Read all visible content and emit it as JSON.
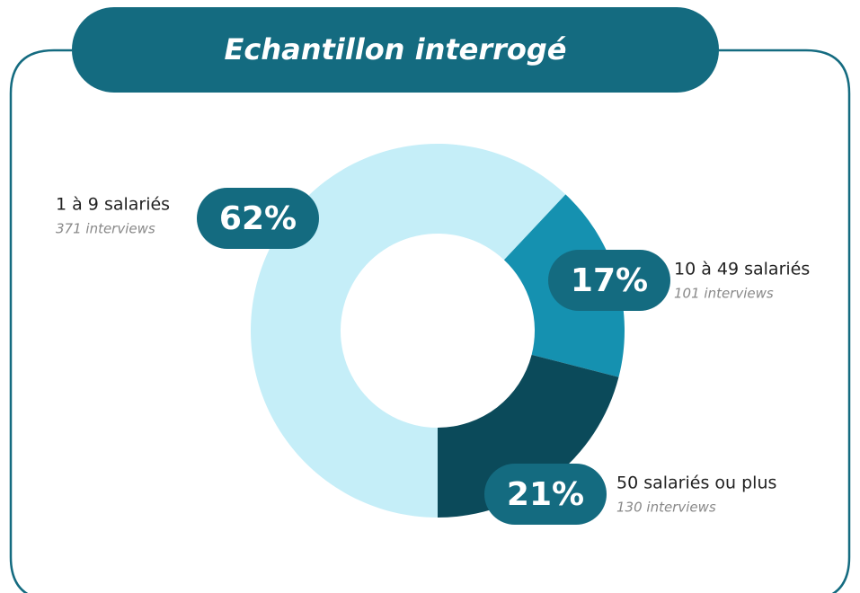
{
  "chart_data": {
    "type": "donut",
    "title": "Echantillon interrogé",
    "categories": [
      "1 à 9 salariés",
      "10 à 49 salariés",
      "50 salariés ou plus"
    ],
    "values": [
      62,
      17,
      21
    ],
    "value_labels": [
      "62%",
      "17%",
      "21%"
    ],
    "sublabels": [
      "371 interviews",
      "101 interviews",
      "130 interviews"
    ],
    "colors": [
      "#c5eef8",
      "#1591b0",
      "#0b4a5a"
    ]
  }
}
